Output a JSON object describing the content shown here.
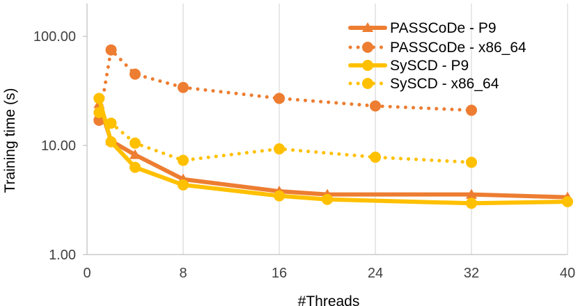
{
  "chart_data": {
    "type": "line",
    "title": "",
    "xlabel": "#Threads",
    "ylabel": "Training time (s)",
    "xscale": "linear",
    "yscale": "log",
    "xlim": [
      0,
      40
    ],
    "ylim": [
      1,
      200
    ],
    "xticks": [
      0,
      8,
      16,
      24,
      32,
      40
    ],
    "xtick_labels": [
      "0",
      "8",
      "16",
      "24",
      "32",
      "40"
    ],
    "yticks": [
      1,
      10,
      100
    ],
    "ytick_labels": [
      "1.00",
      "10.00",
      "100.00"
    ],
    "grid": "vertical",
    "legend_position": "top-right",
    "series": [
      {
        "name": "PASSCoDe - P9",
        "color": "#ED7D31",
        "line": "solid",
        "marker": "triangle",
        "x": [
          1,
          2,
          4,
          8,
          16,
          20,
          32,
          40
        ],
        "y": [
          24.0,
          11.0,
          8.2,
          4.9,
          3.8,
          3.55,
          3.55,
          3.35
        ]
      },
      {
        "name": "PASSCoDe - x86_64",
        "color": "#ED7D31",
        "line": "dotted",
        "marker": "circle",
        "x": [
          1,
          2,
          4,
          8,
          16,
          24,
          32
        ],
        "y": [
          17.0,
          75.0,
          45.0,
          34.0,
          27.0,
          23.0,
          21.0
        ]
      },
      {
        "name": "SySCD - P9",
        "color": "#FFC000",
        "line": "solid",
        "marker": "circle",
        "x": [
          1,
          2,
          4,
          8,
          16,
          20,
          32,
          40
        ],
        "y": [
          27.0,
          10.8,
          6.3,
          4.35,
          3.45,
          3.2,
          2.95,
          3.05
        ]
      },
      {
        "name": "SySCD - x86_64",
        "color": "#FFC000",
        "line": "dotted",
        "marker": "circle",
        "x": [
          1,
          2,
          4,
          8,
          16,
          24,
          32
        ],
        "y": [
          20.0,
          16.0,
          10.5,
          7.3,
          9.3,
          7.8,
          7.0
        ]
      }
    ]
  }
}
